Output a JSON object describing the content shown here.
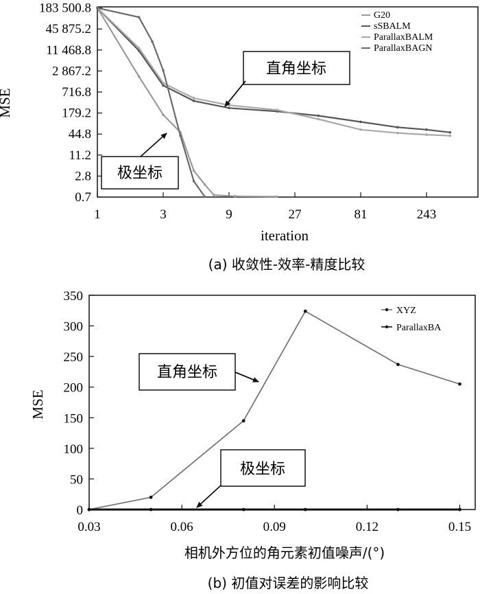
{
  "chart_data": [
    {
      "type": "line",
      "panel_caption": "(a) 收敛性-效率-精度比较",
      "xlabel": "iteration",
      "ylabel": "MSE",
      "x_scale": "log3",
      "y_scale": "log4",
      "x_ticks": [
        "1",
        "3",
        "9",
        "27",
        "81",
        "243"
      ],
      "y_ticks": [
        "0.7",
        "2.8",
        "11.2",
        "44.8",
        "179.2",
        "716.8",
        "2 867.2",
        "11 468.8",
        "45 875.2",
        "183 500.8"
      ],
      "legend": [
        "G20",
        "sSBALM",
        "ParallaxBALM",
        "ParallaxBAGN"
      ],
      "series": [
        {
          "name": "G20",
          "color": "#9a9a9a",
          "x": [
            1,
            2,
            3,
            4,
            5,
            6,
            7,
            10,
            20
          ],
          "y": [
            183500,
            2000,
            160,
            50,
            4,
            1.6,
            0.8,
            0.74,
            0.72
          ]
        },
        {
          "name": "sSBALM",
          "color": "#555555",
          "x": [
            1,
            2,
            3,
            5,
            9,
            20,
            40,
            81,
            150,
            243,
            360
          ],
          "y": [
            183500,
            11000,
            1100,
            400,
            250,
            200,
            150,
            100,
            70,
            60,
            50
          ]
        },
        {
          "name": "ParallaxBALM",
          "color": "#a8a8a8",
          "x": [
            1,
            2,
            3,
            5,
            9,
            20,
            40,
            81,
            150,
            243,
            360
          ],
          "y": [
            183500,
            13000,
            1300,
            480,
            300,
            220,
            120,
            60,
            48,
            43,
            40
          ]
        },
        {
          "name": "ParallaxBAGN",
          "color": "#6a6a6a",
          "x": [
            1,
            2,
            2.5,
            3,
            4,
            5,
            6
          ],
          "y": [
            183500,
            100000,
            20000,
            3000,
            40,
            2,
            0.72
          ]
        }
      ],
      "annotations": [
        {
          "text": "直角坐标"
        },
        {
          "text": "极坐标"
        }
      ]
    },
    {
      "type": "line",
      "panel_caption": "(b) 初值对误差的影响比较",
      "xlabel": "相机外方位的角元素初值噪声/(°)",
      "ylabel": "MSE",
      "ylim": [
        0,
        350
      ],
      "xlim": [
        0.03,
        0.155
      ],
      "x_ticks": [
        "0.03",
        "0.06",
        "0.09",
        "0.12",
        "0.15"
      ],
      "y_ticks": [
        "0",
        "50",
        "100",
        "150",
        "200",
        "250",
        "300",
        "350"
      ],
      "legend": [
        "XYZ",
        "ParallaxBA"
      ],
      "series": [
        {
          "name": "XYZ",
          "color": "#777777",
          "x": [
            0.03,
            0.05,
            0.08,
            0.1,
            0.13,
            0.15
          ],
          "y": [
            0,
            20,
            145,
            324,
            237,
            205
          ]
        },
        {
          "name": "ParallaxBA",
          "color": "#111111",
          "x": [
            0.03,
            0.05,
            0.08,
            0.1,
            0.13,
            0.15
          ],
          "y": [
            0,
            0,
            0,
            0,
            0,
            0
          ]
        }
      ],
      "annotations": [
        {
          "text": "直角坐标"
        },
        {
          "text": "极坐标"
        }
      ]
    }
  ]
}
